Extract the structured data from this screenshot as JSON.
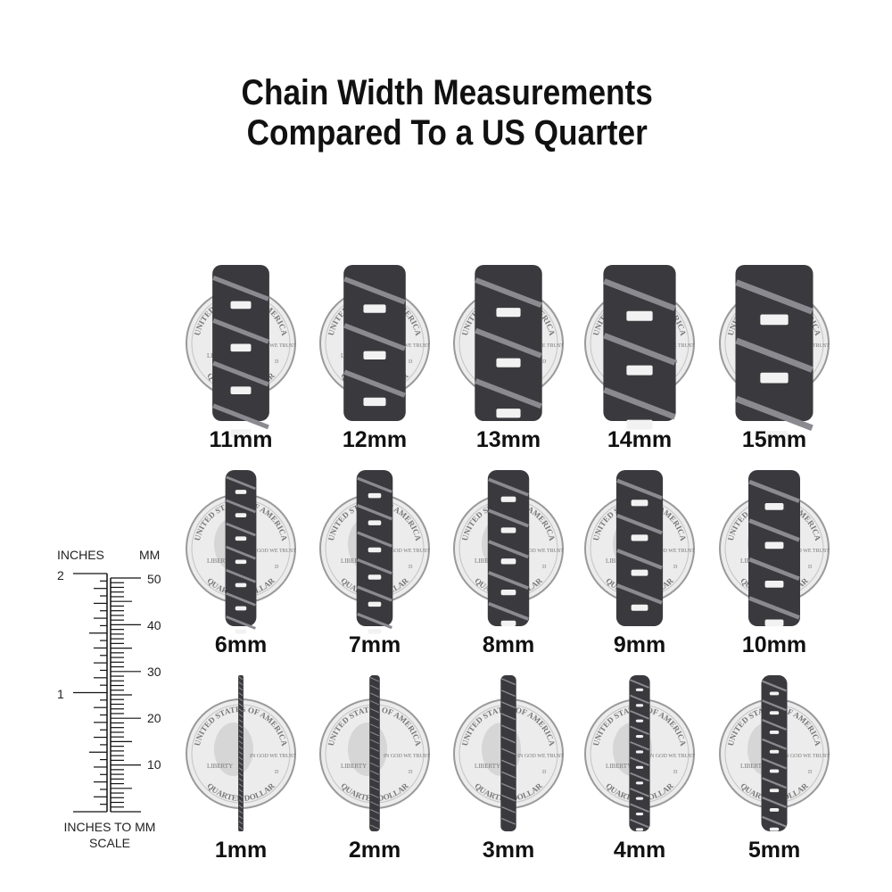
{
  "title": {
    "line1": "Chain Width Measurements",
    "line2": "Compared To a US Quarter"
  },
  "coin_lettering": [
    "UNITED STATES OF AMERICA",
    "LIBERTY",
    "IN GOD WE TRUST",
    "QUARTER DOLLAR",
    "D"
  ],
  "chains": [
    {
      "label": "11mm",
      "width_mm": 11
    },
    {
      "label": "12mm",
      "width_mm": 12
    },
    {
      "label": "13mm",
      "width_mm": 13
    },
    {
      "label": "14mm",
      "width_mm": 14
    },
    {
      "label": "15mm",
      "width_mm": 15
    },
    {
      "label": "6mm",
      "width_mm": 6
    },
    {
      "label": "7mm",
      "width_mm": 7
    },
    {
      "label": "8mm",
      "width_mm": 8
    },
    {
      "label": "9mm",
      "width_mm": 9
    },
    {
      "label": "10mm",
      "width_mm": 10
    },
    {
      "label": "1mm",
      "width_mm": 1
    },
    {
      "label": "2mm",
      "width_mm": 2
    },
    {
      "label": "3mm",
      "width_mm": 3
    },
    {
      "label": "4mm",
      "width_mm": 4
    },
    {
      "label": "5mm",
      "width_mm": 5
    }
  ],
  "scale": {
    "inches_header": "INCHES",
    "mm_header": "MM",
    "inch_labels": [
      "2",
      "1"
    ],
    "mm_labels": [
      "50",
      "40",
      "30",
      "20",
      "10"
    ],
    "caption_line1": "INCHES TO MM",
    "caption_line2": "SCALE"
  },
  "colors": {
    "chain": "#3a3a3e",
    "chain_highlight": "#8a8a90",
    "coin": "#ececec",
    "coin_rim": "#9a9a9a",
    "text": "#111111"
  }
}
